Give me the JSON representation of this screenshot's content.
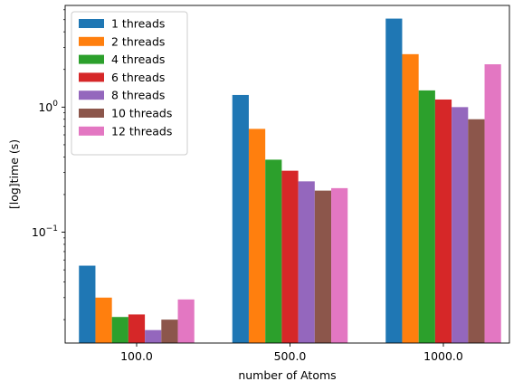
{
  "chart_data": {
    "type": "bar",
    "yscale": "log",
    "ylim": [
      0.013,
      6.5
    ],
    "categories": [
      "100.0",
      "500.0",
      "1000.0"
    ],
    "xlabel": "number of Atoms",
    "ylabel": "[log]time (s)",
    "legend_position": "top-left",
    "grid": false,
    "y_major_ticks": [
      {
        "value": 0.1,
        "base": "10",
        "exp": "−1"
      },
      {
        "value": 1,
        "base": "10",
        "exp": "0"
      }
    ],
    "series": [
      {
        "name": "1 threads",
        "color": "#1f77b4",
        "values": [
          0.054,
          1.25,
          5.1
        ]
      },
      {
        "name": "2 threads",
        "color": "#ff7f0e",
        "values": [
          0.03,
          0.67,
          2.65
        ]
      },
      {
        "name": "4 threads",
        "color": "#2ca02c",
        "values": [
          0.021,
          0.38,
          1.36
        ]
      },
      {
        "name": "6 threads",
        "color": "#d62728",
        "values": [
          0.022,
          0.31,
          1.15
        ]
      },
      {
        "name": "8 threads",
        "color": "#9467bd",
        "values": [
          0.0165,
          0.255,
          1.0
        ]
      },
      {
        "name": "10 threads",
        "color": "#8c564b",
        "values": [
          0.02,
          0.215,
          0.8
        ]
      },
      {
        "name": "12 threads",
        "color": "#e377c2",
        "values": [
          0.029,
          0.225,
          2.2
        ]
      }
    ]
  }
}
